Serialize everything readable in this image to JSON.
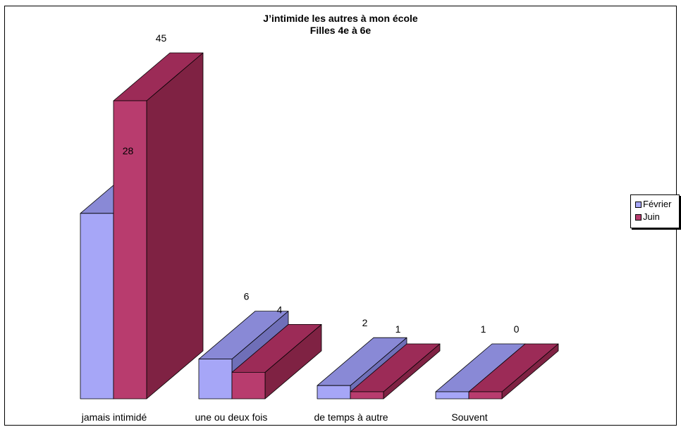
{
  "chart_data": {
    "type": "bar",
    "title": "J’intimide les autres à mon école",
    "subtitle": "Filles 4e à 6e",
    "categories": [
      "jamais intimidé",
      "une ou deux fois",
      "de temps à autre",
      "Souvent"
    ],
    "series": [
      {
        "name": "Février",
        "values": [
          28,
          6,
          2,
          1
        ],
        "color": "#a6a6f7",
        "top_color": "#8989d6",
        "side_color": "#6f6fb8"
      },
      {
        "name": "Juin",
        "values": [
          45,
          4,
          1,
          0
        ],
        "color": "#b83c6e",
        "top_color": "#9c2b57",
        "side_color": "#7f2243"
      }
    ],
    "grid": false,
    "legend_position": "right",
    "three_d": true
  }
}
